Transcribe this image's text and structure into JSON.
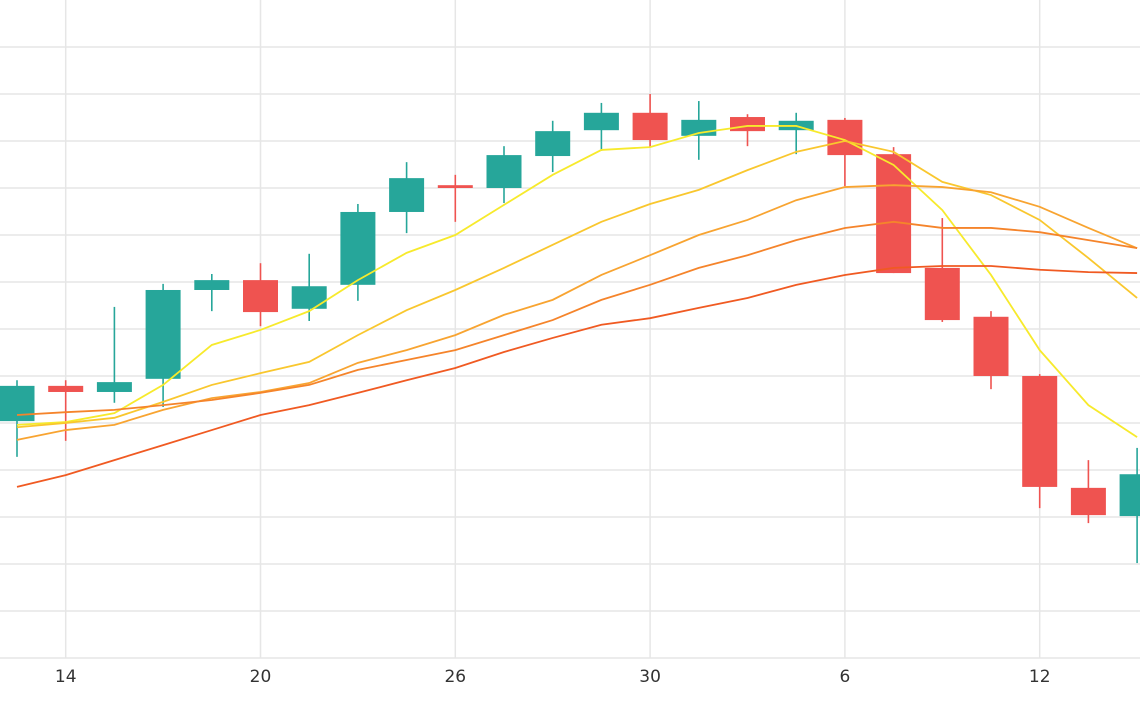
{
  "chart_data": {
    "type": "candlestick",
    "categories": [
      null,
      "14",
      null,
      null,
      null,
      "20",
      null,
      null,
      null,
      "26",
      null,
      null,
      null,
      "30",
      null,
      null,
      null,
      "6",
      null,
      null,
      null,
      "12",
      null,
      null
    ],
    "open": [
      5.04,
      5.79,
      5.66,
      5.94,
      7.83,
      8.04,
      7.43,
      7.94,
      9.49,
      10.06,
      10.0,
      10.68,
      11.23,
      11.6,
      11.11,
      11.51,
      11.23,
      11.45,
      10.72,
      8.3,
      7.26,
      6.0,
      3.62,
      3.02
    ],
    "high": [
      5.91,
      5.91,
      7.47,
      7.96,
      8.17,
      8.4,
      8.6,
      9.66,
      10.55,
      10.28,
      10.89,
      11.43,
      11.81,
      12.0,
      11.85,
      11.57,
      11.6,
      11.49,
      10.87,
      9.36,
      7.38,
      6.04,
      4.21,
      4.47
    ],
    "low": [
      4.28,
      4.62,
      5.43,
      5.34,
      7.38,
      7.06,
      7.17,
      7.6,
      9.04,
      9.28,
      9.68,
      10.34,
      10.79,
      10.87,
      10.6,
      10.89,
      10.72,
      10.04,
      8.19,
      7.15,
      5.72,
      3.19,
      2.87,
      2.02
    ],
    "close": [
      5.79,
      5.66,
      5.87,
      7.83,
      8.04,
      7.36,
      7.91,
      9.49,
      10.21,
      10.0,
      10.7,
      11.21,
      11.6,
      11.02,
      11.45,
      11.21,
      11.43,
      10.7,
      8.19,
      7.19,
      6.0,
      3.64,
      3.04,
      3.91
    ],
    "up_color": "#26a69a",
    "down_color": "#ef5350",
    "series": [
      {
        "color": "#f7ea2c",
        "values": [
          4.96,
          5.02,
          5.21,
          5.81,
          6.66,
          6.98,
          7.38,
          8.04,
          8.62,
          9.0,
          9.64,
          10.28,
          10.81,
          10.87,
          11.17,
          11.32,
          11.32,
          11.02,
          10.49,
          9.53,
          8.15,
          6.55,
          5.38,
          4.7
        ]
      },
      {
        "color": "#f9c72e",
        "values": [
          4.91,
          5.0,
          5.11,
          5.45,
          5.81,
          6.06,
          6.3,
          6.87,
          7.4,
          7.83,
          8.3,
          8.79,
          9.28,
          9.66,
          9.96,
          10.38,
          10.77,
          11.0,
          10.77,
          10.13,
          9.85,
          9.32,
          8.51,
          7.66
        ]
      },
      {
        "color": "#f8a431",
        "values": [
          4.64,
          4.85,
          4.96,
          5.28,
          5.53,
          5.66,
          5.85,
          6.28,
          6.55,
          6.87,
          7.3,
          7.62,
          8.15,
          8.57,
          9.0,
          9.32,
          9.74,
          10.02,
          10.06,
          10.02,
          9.91,
          9.6,
          9.15,
          8.72
        ]
      },
      {
        "color": "#f5842b",
        "values": [
          5.17,
          5.23,
          5.28,
          5.38,
          5.49,
          5.64,
          5.81,
          6.13,
          6.34,
          6.55,
          6.87,
          7.19,
          7.62,
          7.94,
          8.3,
          8.57,
          8.89,
          9.15,
          9.28,
          9.15,
          9.15,
          9.06,
          8.89,
          8.72
        ]
      },
      {
        "color": "#f05a22",
        "values": [
          3.64,
          3.89,
          4.21,
          4.53,
          4.85,
          5.17,
          5.38,
          5.64,
          5.91,
          6.17,
          6.51,
          6.81,
          7.09,
          7.23,
          7.45,
          7.66,
          7.94,
          8.15,
          8.3,
          8.34,
          8.34,
          8.26,
          8.21,
          8.19
        ]
      }
    ],
    "ylim": [
      0,
      14
    ],
    "ygrid": [
      0,
      1,
      2,
      3,
      4,
      5,
      6,
      7,
      8,
      9,
      10,
      11,
      12,
      13
    ],
    "grid": true
  }
}
